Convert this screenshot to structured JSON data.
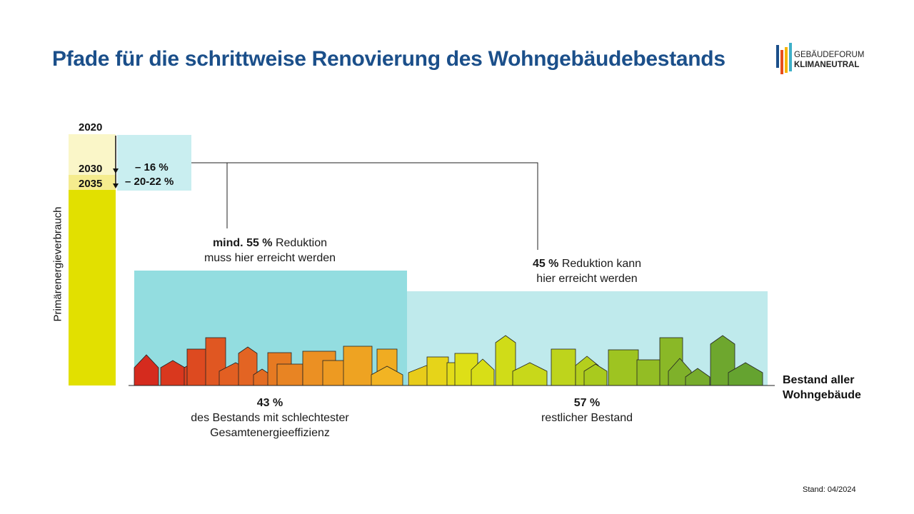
{
  "title": "Pfade für die schrittweise Renovierung des Wohngebäudebestands",
  "logo": {
    "line1": "GEBÄUDEFORUM",
    "line2": "KLIMANEUTRAL",
    "bar_colors": [
      "#1b4f8a",
      "#e84e1b",
      "#f5b400",
      "#3eb0c9"
    ]
  },
  "timeline": {
    "years": [
      "2020",
      "2030",
      "2035"
    ],
    "reductions": [
      "– 16 %",
      "– 20-22 %"
    ]
  },
  "y_axis_label": "Primärenergieverbrauch",
  "groups": {
    "left": {
      "reduction_bold": "mind. 55 %",
      "reduction_rest": " Reduktion",
      "reduction_line2": "muss hier erreicht werden",
      "share": "43 %",
      "share_line1": "des Bestands mit schlechtester",
      "share_line2": "Gesamtenergieeffizienz",
      "color": "#93dde0"
    },
    "right": {
      "reduction_bold": "45 %",
      "reduction_rest": " Reduktion kann",
      "reduction_line2": "hier erreicht werden",
      "share": "57 %",
      "share_line1": "restlicher Bestand",
      "color": "#bfeaec"
    }
  },
  "x_axis_label_line1": "Bestand aller",
  "x_axis_label_line2": "Wohngebäude",
  "stand": "Stand: 04/2024",
  "colors": {
    "title": "#1b4f8a",
    "bar_2020": "#faf6c8",
    "bar_2030": "#f5ec8e",
    "bar_2035": "#e2e000",
    "reduction_box": "#c9eef0"
  }
}
